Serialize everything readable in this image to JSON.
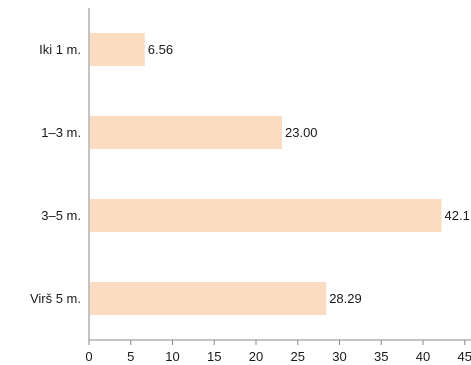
{
  "chart_data": {
    "type": "bar",
    "orientation": "horizontal",
    "categories": [
      "Iki 1 m.",
      "1–3 m.",
      "3–5 m.",
      "Virš 5 m."
    ],
    "values": [
      6.56,
      23.0,
      42.1,
      28.29
    ],
    "value_labels": [
      "6.56",
      "23.00",
      "42.1",
      "28.29"
    ],
    "xlim": [
      0,
      45
    ],
    "xticks": [
      "0",
      "5",
      "10",
      "15",
      "20",
      "25",
      "30",
      "35",
      "40",
      "45"
    ],
    "grid": false,
    "legend": false,
    "title": "",
    "xlabel": "",
    "ylabel": "",
    "colors": {
      "bar": "#fbdcc1",
      "axis": "#888888",
      "text": "#1a1a1a"
    }
  }
}
